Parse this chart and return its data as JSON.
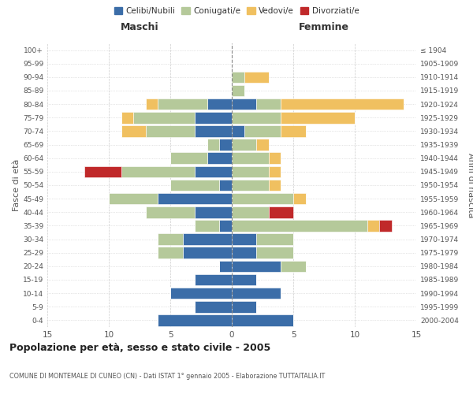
{
  "age_groups": [
    "0-4",
    "5-9",
    "10-14",
    "15-19",
    "20-24",
    "25-29",
    "30-34",
    "35-39",
    "40-44",
    "45-49",
    "50-54",
    "55-59",
    "60-64",
    "65-69",
    "70-74",
    "75-79",
    "80-84",
    "85-89",
    "90-94",
    "95-99",
    "100+"
  ],
  "birth_years": [
    "2000-2004",
    "1995-1999",
    "1990-1994",
    "1985-1989",
    "1980-1984",
    "1975-1979",
    "1970-1974",
    "1965-1969",
    "1960-1964",
    "1955-1959",
    "1950-1954",
    "1945-1949",
    "1940-1944",
    "1935-1939",
    "1930-1934",
    "1925-1929",
    "1920-1924",
    "1915-1919",
    "1910-1914",
    "1905-1909",
    "≤ 1904"
  ],
  "maschi": {
    "celibi": [
      6,
      3,
      5,
      3,
      1,
      4,
      4,
      1,
      3,
      6,
      1,
      3,
      2,
      1,
      3,
      3,
      2,
      0,
      0,
      0,
      0
    ],
    "coniugati": [
      0,
      0,
      0,
      0,
      0,
      2,
      2,
      2,
      4,
      4,
      4,
      6,
      3,
      1,
      4,
      5,
      4,
      0,
      0,
      0,
      0
    ],
    "vedovi": [
      0,
      0,
      0,
      0,
      0,
      0,
      0,
      0,
      0,
      0,
      0,
      0,
      0,
      0,
      2,
      1,
      1,
      0,
      0,
      0,
      0
    ],
    "divorziati": [
      0,
      0,
      0,
      0,
      0,
      0,
      0,
      0,
      0,
      0,
      0,
      3,
      0,
      0,
      0,
      0,
      0,
      0,
      0,
      0,
      0
    ]
  },
  "femmine": {
    "nubili": [
      5,
      2,
      4,
      2,
      4,
      2,
      2,
      0,
      0,
      0,
      0,
      0,
      0,
      0,
      1,
      0,
      2,
      0,
      0,
      0,
      0
    ],
    "coniugate": [
      0,
      0,
      0,
      0,
      2,
      3,
      3,
      11,
      3,
      5,
      3,
      3,
      3,
      2,
      3,
      4,
      2,
      1,
      1,
      0,
      0
    ],
    "vedove": [
      0,
      0,
      0,
      0,
      0,
      0,
      0,
      1,
      0,
      1,
      1,
      1,
      1,
      1,
      2,
      6,
      10,
      0,
      2,
      0,
      0
    ],
    "divorziate": [
      0,
      0,
      0,
      0,
      0,
      0,
      0,
      1,
      2,
      0,
      0,
      0,
      0,
      0,
      0,
      0,
      0,
      0,
      0,
      0,
      0
    ]
  },
  "colors": {
    "celibi": "#3b6da8",
    "coniugati": "#b5c99a",
    "vedovi": "#f0c060",
    "divorziati": "#c0292a"
  },
  "xlim": 15,
  "title": "Popolazione per età, sesso e stato civile - 2005",
  "subtitle": "COMUNE DI MONTEMALE DI CUNEO (CN) - Dati ISTAT 1° gennaio 2005 - Elaborazione TUTTAITALIA.IT",
  "ylabel_left": "Fasce di età",
  "ylabel_right": "Anni di nascita",
  "xlabel_maschi": "Maschi",
  "xlabel_femmine": "Femmine",
  "legend_labels": [
    "Celibi/Nubili",
    "Coniugati/e",
    "Vedovi/e",
    "Divorziati/e"
  ],
  "bg_color": "#ffffff",
  "grid_color": "#cccccc"
}
